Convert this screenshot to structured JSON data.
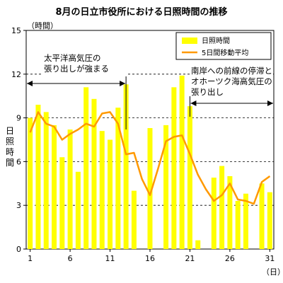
{
  "chart_data": {
    "type": "bar",
    "title": "8月の日立市役所における日照時間の推移",
    "ylabel": "日照時間",
    "y_unit": "（時間）",
    "x_unit": "（日）",
    "ylim": [
      0,
      15
    ],
    "yticks": [
      0,
      3,
      6,
      9,
      12,
      15
    ],
    "xlim": [
      1,
      31
    ],
    "xticks": [
      1,
      6,
      11,
      16,
      21,
      26,
      31
    ],
    "x": [
      1,
      2,
      3,
      4,
      5,
      6,
      7,
      8,
      9,
      10,
      11,
      12,
      13,
      14,
      15,
      16,
      17,
      18,
      19,
      20,
      21,
      22,
      23,
      24,
      25,
      26,
      27,
      28,
      29,
      30,
      31
    ],
    "series": [
      {
        "name": "日照時間",
        "type": "bar",
        "color": "#ffff00",
        "values": [
          9.0,
          9.9,
          9.4,
          8.5,
          6.3,
          8.2,
          5.3,
          11.1,
          10.3,
          8.1,
          7.5,
          9.7,
          11.3,
          4.0,
          0,
          8.3,
          0,
          8.5,
          11.1,
          11.9,
          9.8,
          0.6,
          0,
          4.9,
          5.7,
          5.0,
          3.3,
          3.8,
          0,
          4.5,
          3.9
        ]
      },
      {
        "name": "5日間移動平均",
        "type": "line",
        "color": "#ff9900",
        "values": [
          8.0,
          9.4,
          8.6,
          8.4,
          7.5,
          7.9,
          8.2,
          8.6,
          8.4,
          9.3,
          9.4,
          8.6,
          6.5,
          6.6,
          4.8,
          3.7,
          5.5,
          7.4,
          7.7,
          7.8,
          6.5,
          5.1,
          4.1,
          3.3,
          3.7,
          4.5,
          3.4,
          3.3,
          3.1,
          4.6,
          5.0
        ]
      }
    ],
    "grid": "horizontal-dashed",
    "legend": "top-right",
    "annotations": [
      {
        "text_lines": [
          "太平洋高気圧の",
          "張り出しが強まる"
        ],
        "from": 1,
        "to": 13
      },
      {
        "text_lines": [
          "南岸への前線の停滞と",
          "オホーツク海高気圧の",
          "張り出し"
        ],
        "from": 21,
        "to": 31
      }
    ]
  }
}
